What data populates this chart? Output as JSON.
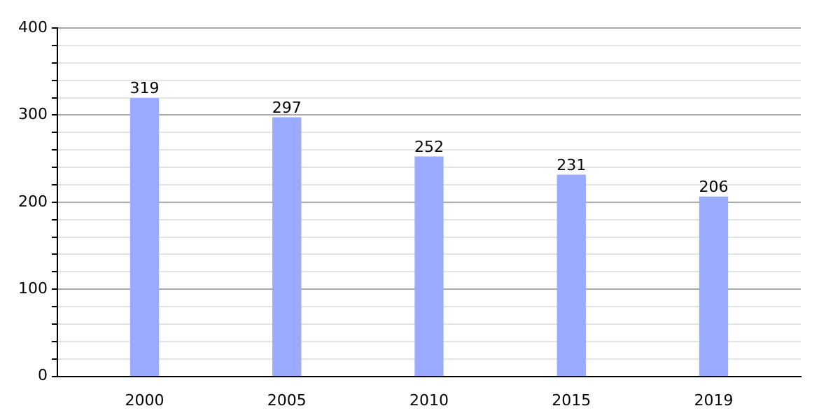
{
  "chart_data": {
    "type": "bar",
    "categories": [
      "2000",
      "2005",
      "2010",
      "2015",
      "2019"
    ],
    "values": [
      319,
      297,
      252,
      231,
      206
    ],
    "color": "#99aaff",
    "ylim": [
      0,
      400
    ],
    "yticks": [
      0,
      {
        "value": 20,
        "label": null
      },
      {
        "value": 40,
        "label": null
      },
      {
        "value": 60,
        "label": null
      },
      {
        "value": 80,
        "label": null
      },
      100,
      {
        "value": 120,
        "label": null
      },
      {
        "value": 140,
        "label": null
      },
      {
        "value": 160,
        "label": null
      },
      {
        "value": 180,
        "label": null
      },
      200,
      {
        "value": 220,
        "label": null
      },
      {
        "value": 240,
        "label": null
      },
      {
        "value": 260,
        "label": null
      },
      {
        "value": 280,
        "label": null
      },
      300,
      {
        "value": 320,
        "label": null
      },
      {
        "value": 340,
        "label": null
      },
      {
        "value": 360,
        "label": null
      },
      {
        "value": 380,
        "label": null
      },
      400
    ],
    "grid": true,
    "data_labels": true
  }
}
